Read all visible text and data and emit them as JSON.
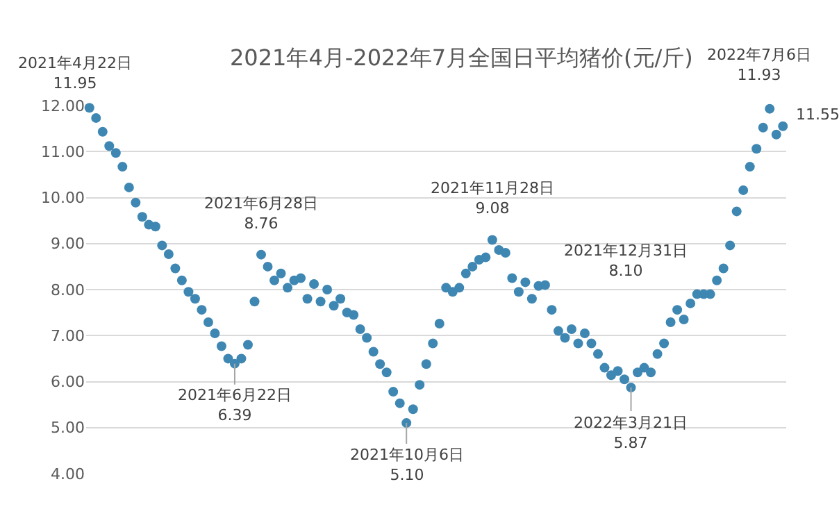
{
  "chart_data": {
    "type": "scatter",
    "title": "2021年4月-2022年7月全国日平均猪价(元/斤)",
    "categories": [
      null,
      null,
      null,
      null,
      null,
      null,
      null,
      null,
      null,
      null,
      null,
      null,
      null,
      null,
      null,
      null,
      null,
      null,
      null,
      null,
      null,
      null,
      null,
      null,
      null,
      null,
      null,
      null,
      null,
      null,
      null,
      null,
      null,
      null,
      null,
      null,
      null,
      null,
      null,
      null,
      null,
      null,
      null,
      null,
      null,
      null,
      null,
      null,
      null,
      null,
      null,
      null,
      null,
      null,
      null,
      null,
      null,
      null,
      null,
      null,
      null,
      null,
      null,
      null,
      null,
      null,
      null,
      null,
      null,
      null,
      null,
      null,
      null,
      null,
      null,
      null,
      null,
      null,
      null,
      null,
      null,
      null,
      null,
      null,
      null,
      null,
      null,
      null,
      null,
      null,
      null,
      null,
      null,
      null,
      null,
      null,
      null,
      null,
      null,
      null,
      null,
      null,
      null,
      null,
      null,
      null
    ],
    "values": [
      11.95,
      11.73,
      11.43,
      11.12,
      10.97,
      10.67,
      10.22,
      9.89,
      9.58,
      9.41,
      9.37,
      8.96,
      8.77,
      8.46,
      8.2,
      7.95,
      7.8,
      7.56,
      7.29,
      7.05,
      6.77,
      6.5,
      6.39,
      6.5,
      6.8,
      7.74,
      8.76,
      8.5,
      8.2,
      8.35,
      8.04,
      8.2,
      8.25,
      7.8,
      8.12,
      7.74,
      8.0,
      7.65,
      7.8,
      7.5,
      7.45,
      7.14,
      6.95,
      6.65,
      6.38,
      6.2,
      5.78,
      5.53,
      5.1,
      5.4,
      5.93,
      6.38,
      6.83,
      7.26,
      8.04,
      7.95,
      8.04,
      8.35,
      8.5,
      8.65,
      8.7,
      9.08,
      8.86,
      8.8,
      8.25,
      7.95,
      8.16,
      7.8,
      8.08,
      8.1,
      7.56,
      7.1,
      6.95,
      7.14,
      6.83,
      7.05,
      6.83,
      6.6,
      6.3,
      6.14,
      6.23,
      6.05,
      5.87,
      6.2,
      6.3,
      6.2,
      6.6,
      6.83,
      7.29,
      7.56,
      7.35,
      7.7,
      7.9,
      7.9,
      7.9,
      8.2,
      8.46,
      8.96,
      9.7,
      10.16,
      10.67,
      11.06,
      11.52,
      11.93,
      11.37,
      11.55
    ],
    "color": "#3f87b3",
    "marker": "circle",
    "ylim": [
      4,
      12
    ],
    "yticks": [
      {
        "value": 4,
        "label": "4.00"
      },
      {
        "value": 5,
        "label": "5.00"
      },
      {
        "value": 6,
        "label": "6.00"
      },
      {
        "value": 7,
        "label": "7.00"
      },
      {
        "value": 8,
        "label": "8.00"
      },
      {
        "value": 9,
        "label": "9.00"
      },
      {
        "value": 10,
        "label": "10.00"
      },
      {
        "value": 11,
        "label": "11.00"
      },
      {
        "value": 12,
        "label": "12.00"
      }
    ],
    "tick_labels": "y",
    "grid": "y",
    "legend": false,
    "annotations": [
      "2021年4月22日\n11.95",
      {
        "text": "2021年6月28日\n8.76",
        "y": 8.76
      },
      {
        "text": "2021年6月22日\n6.39",
        "y": 6.39
      },
      {
        "text": "2021年10月6日\n5.10",
        "y": 5.1
      },
      {
        "text": "2021年11月28日\n9.08",
        "y": 9.08
      },
      "2021年12月31日\n8.10",
      {
        "text": "2022年3月21日\n5.87",
        "y": 5.87
      },
      {
        "text": "2022年7月6日\n11.93",
        "y": 11.93
      },
      "11.55"
    ]
  }
}
